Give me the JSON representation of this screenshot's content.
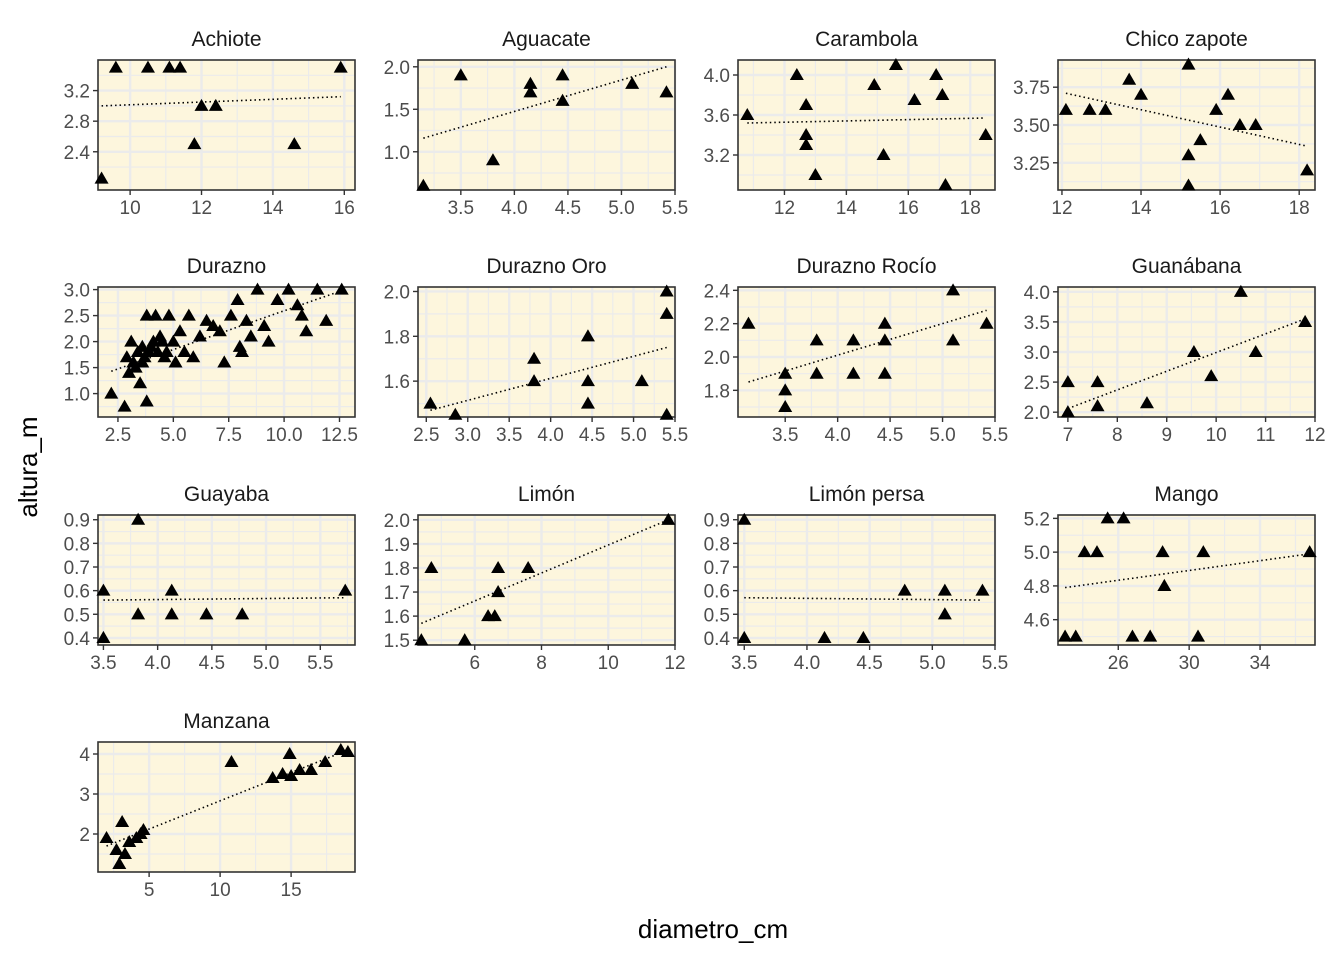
{
  "figure": {
    "xlabel": "diametro_cm",
    "ylabel": "altura_m",
    "panel_fill": "#fdf6dd",
    "grid_color": "#ebebeb",
    "point_color": "#000000",
    "point_shape": "filled-triangle",
    "trend_line": "dotted linear fit",
    "layout": "facet grid 4 columns"
  },
  "chart_data": [
    {
      "type": "scatter",
      "title": "Achiote",
      "xlim": [
        9.1,
        16.3
      ],
      "ylim": [
        1.9,
        3.6
      ],
      "xticks": [
        10,
        12,
        14,
        16
      ],
      "xtick_labels": [
        "10",
        "12",
        "14",
        "16"
      ],
      "yticks": [
        2.4,
        2.8,
        3.2
      ],
      "ytick_labels": [
        "2.4",
        "2.8",
        "3.2"
      ],
      "x": [
        9.2,
        9.6,
        10.5,
        11.1,
        11.4,
        12.0,
        12.4,
        11.8,
        14.6,
        15.9
      ],
      "y": [
        2.05,
        3.5,
        3.5,
        3.5,
        3.5,
        3.0,
        3.0,
        2.5,
        2.5,
        3.5
      ],
      "trend": [
        [
          9.2,
          3.0
        ],
        [
          15.9,
          3.12
        ]
      ]
    },
    {
      "type": "scatter",
      "title": "Aguacate",
      "xlim": [
        3.1,
        5.5
      ],
      "ylim": [
        0.55,
        2.08
      ],
      "xticks": [
        3.5,
        4.0,
        4.5,
        5.0,
        5.5
      ],
      "xtick_labels": [
        "3.5",
        "4.0",
        "4.5",
        "5.0",
        "5.5"
      ],
      "yticks": [
        1.0,
        1.5,
        2.0
      ],
      "ytick_labels": [
        "1.0",
        "1.5",
        "2.0"
      ],
      "x": [
        3.15,
        3.5,
        3.8,
        4.15,
        4.15,
        4.45,
        4.45,
        5.1,
        5.42
      ],
      "y": [
        0.6,
        1.9,
        0.9,
        1.7,
        1.8,
        1.9,
        1.6,
        1.8,
        1.7
      ],
      "trend": [
        [
          3.15,
          1.16
        ],
        [
          5.42,
          2.0
        ]
      ]
    },
    {
      "type": "scatter",
      "title": "Carambola",
      "xlim": [
        10.5,
        18.8
      ],
      "ylim": [
        2.85,
        4.15
      ],
      "xticks": [
        12,
        14,
        16,
        18
      ],
      "xtick_labels": [
        "12",
        "14",
        "16",
        "18"
      ],
      "yticks": [
        3.2,
        3.6,
        4.0
      ],
      "ytick_labels": [
        "3.2",
        "3.6",
        "4.0"
      ],
      "x": [
        10.8,
        12.4,
        12.7,
        12.7,
        12.7,
        13.0,
        14.9,
        15.2,
        15.6,
        16.2,
        16.9,
        17.1,
        17.2,
        18.5
      ],
      "y": [
        3.6,
        4.0,
        3.7,
        3.4,
        3.3,
        3.0,
        3.9,
        3.2,
        4.1,
        3.75,
        4.0,
        3.8,
        2.9,
        3.4
      ],
      "trend": [
        [
          10.8,
          3.52
        ],
        [
          18.5,
          3.57
        ]
      ]
    },
    {
      "type": "scatter",
      "title": "Chico zapote",
      "xlim": [
        11.9,
        18.4
      ],
      "ylim": [
        3.07,
        3.93
      ],
      "xticks": [
        12,
        14,
        16,
        18
      ],
      "xtick_labels": [
        "12",
        "14",
        "16",
        "18"
      ],
      "yticks": [
        3.25,
        3.5,
        3.75
      ],
      "ytick_labels": [
        "3.25",
        "3.50",
        "3.75"
      ],
      "x": [
        12.1,
        12.7,
        13.1,
        13.7,
        14.0,
        15.2,
        15.2,
        15.2,
        15.5,
        15.9,
        16.2,
        16.5,
        16.9,
        18.2
      ],
      "y": [
        3.6,
        3.6,
        3.6,
        3.8,
        3.7,
        3.9,
        3.3,
        3.1,
        3.4,
        3.6,
        3.7,
        3.5,
        3.5,
        3.2
      ],
      "trend": [
        [
          12.1,
          3.71
        ],
        [
          18.2,
          3.36
        ]
      ]
    },
    {
      "type": "scatter",
      "title": "Durazno",
      "xlim": [
        1.6,
        13.2
      ],
      "ylim": [
        0.55,
        3.05
      ],
      "xticks": [
        2.5,
        5.0,
        7.5,
        10.0,
        12.5
      ],
      "xtick_labels": [
        "2.5",
        "5.0",
        "7.5",
        "10.0",
        "12.5"
      ],
      "yticks": [
        1.0,
        1.5,
        2.0,
        2.5,
        3.0
      ],
      "ytick_labels": [
        "1.0",
        "1.5",
        "2.0",
        "2.5",
        "3.0"
      ],
      "x": [
        2.2,
        2.8,
        2.9,
        3.0,
        3.1,
        3.2,
        3.3,
        3.4,
        3.5,
        3.6,
        3.6,
        3.7,
        3.8,
        3.8,
        3.9,
        4.0,
        4.1,
        4.2,
        4.3,
        4.4,
        4.5,
        4.6,
        4.7,
        4.8,
        5.0,
        5.1,
        5.3,
        5.5,
        5.7,
        5.9,
        6.2,
        6.5,
        6.8,
        7.1,
        7.3,
        7.6,
        7.9,
        8.0,
        8.1,
        8.3,
        8.5,
        8.8,
        9.1,
        9.3,
        9.7,
        10.2,
        10.6,
        10.8,
        11.0,
        11.5,
        11.9,
        12.6
      ],
      "y": [
        1.0,
        0.75,
        1.7,
        1.4,
        2.0,
        1.6,
        1.5,
        1.8,
        1.2,
        1.9,
        1.6,
        1.7,
        2.5,
        0.85,
        1.8,
        1.9,
        2.0,
        2.5,
        1.8,
        2.1,
        2.0,
        1.7,
        1.8,
        2.5,
        2.0,
        1.6,
        2.2,
        1.8,
        2.5,
        1.7,
        2.1,
        2.4,
        2.3,
        2.2,
        1.6,
        2.5,
        2.8,
        1.9,
        1.8,
        2.4,
        2.1,
        3.0,
        2.3,
        2.0,
        2.8,
        3.0,
        2.7,
        2.5,
        2.2,
        3.0,
        2.4,
        3.0
      ],
      "trend": [
        [
          2.2,
          1.43
        ],
        [
          12.6,
          2.98
        ]
      ]
    },
    {
      "type": "scatter",
      "title": "Durazno Oro",
      "xlim": [
        2.4,
        5.5
      ],
      "ylim": [
        1.44,
        2.02
      ],
      "xticks": [
        2.5,
        3.0,
        3.5,
        4.0,
        4.5,
        5.0,
        5.5
      ],
      "xtick_labels": [
        "2.5",
        "3.0",
        "3.5",
        "4.0",
        "4.5",
        "5.0",
        "5.5"
      ],
      "yticks": [
        1.6,
        1.8,
        2.0
      ],
      "ytick_labels": [
        "1.6",
        "1.8",
        "2.0"
      ],
      "x": [
        2.55,
        2.85,
        3.8,
        3.8,
        4.45,
        4.45,
        4.45,
        5.1,
        5.4,
        5.4,
        5.4
      ],
      "y": [
        1.5,
        1.45,
        1.7,
        1.6,
        1.8,
        1.6,
        1.5,
        1.6,
        2.0,
        1.9,
        1.45
      ],
      "trend": [
        [
          2.55,
          1.47
        ],
        [
          5.4,
          1.75
        ]
      ]
    },
    {
      "type": "scatter",
      "title": "Durazno Rocío",
      "xlim": [
        3.05,
        5.5
      ],
      "ylim": [
        1.64,
        2.42
      ],
      "xticks": [
        3.5,
        4.0,
        4.5,
        5.0,
        5.5
      ],
      "xtick_labels": [
        "3.5",
        "4.0",
        "4.5",
        "5.0",
        "5.5"
      ],
      "yticks": [
        1.8,
        2.0,
        2.2,
        2.4
      ],
      "ytick_labels": [
        "1.8",
        "2.0",
        "2.2",
        "2.4"
      ],
      "x": [
        3.15,
        3.5,
        3.5,
        3.5,
        3.8,
        3.8,
        4.15,
        4.15,
        4.45,
        4.45,
        4.45,
        5.1,
        5.1,
        5.42
      ],
      "y": [
        2.2,
        1.9,
        1.8,
        1.7,
        2.1,
        1.9,
        2.1,
        1.9,
        2.2,
        2.1,
        1.9,
        2.4,
        2.1,
        2.2
      ],
      "trend": [
        [
          3.15,
          1.85
        ],
        [
          5.42,
          2.28
        ]
      ]
    },
    {
      "type": "scatter",
      "title": "Guanábana",
      "xlim": [
        6.8,
        12.0
      ],
      "ylim": [
        1.92,
        4.08
      ],
      "xticks": [
        7,
        8,
        9,
        10,
        11,
        12
      ],
      "xtick_labels": [
        "7",
        "8",
        "9",
        "10",
        "11",
        "12"
      ],
      "yticks": [
        2.0,
        2.5,
        3.0,
        3.5,
        4.0
      ],
      "ytick_labels": [
        "2.0",
        "2.5",
        "3.0",
        "3.5",
        "4.0"
      ],
      "x": [
        7.0,
        7.0,
        7.6,
        7.6,
        8.6,
        9.55,
        9.9,
        10.5,
        10.8,
        11.8
      ],
      "y": [
        2.5,
        2.0,
        2.5,
        2.1,
        2.15,
        3.0,
        2.6,
        4.0,
        3.0,
        3.5
      ],
      "trend": [
        [
          7.0,
          2.06
        ],
        [
          11.8,
          3.55
        ]
      ]
    },
    {
      "type": "scatter",
      "title": "Guayaba",
      "xlim": [
        3.45,
        5.82
      ],
      "ylim": [
        0.37,
        0.92
      ],
      "xticks": [
        3.5,
        4.0,
        4.5,
        5.0,
        5.5
      ],
      "xtick_labels": [
        "3.5",
        "4.0",
        "4.5",
        "5.0",
        "5.5"
      ],
      "yticks": [
        0.4,
        0.5,
        0.6,
        0.7,
        0.8,
        0.9
      ],
      "ytick_labels": [
        "0.4",
        "0.5",
        "0.6",
        "0.7",
        "0.8",
        "0.9"
      ],
      "x": [
        3.5,
        3.5,
        3.82,
        3.82,
        4.13,
        4.13,
        4.45,
        4.78,
        5.73
      ],
      "y": [
        0.6,
        0.4,
        0.9,
        0.5,
        0.6,
        0.5,
        0.5,
        0.5,
        0.6
      ],
      "trend": [
        [
          3.5,
          0.56
        ],
        [
          5.73,
          0.57
        ]
      ]
    },
    {
      "type": "scatter",
      "title": "Limón",
      "xlim": [
        4.3,
        12.0
      ],
      "ylim": [
        1.48,
        2.02
      ],
      "xticks": [
        6,
        8,
        10,
        12
      ],
      "xtick_labels": [
        "6",
        "8",
        "10",
        "12"
      ],
      "yticks": [
        1.5,
        1.6,
        1.7,
        1.8,
        1.9,
        2.0
      ],
      "ytick_labels": [
        "1.5",
        "1.6",
        "1.7",
        "1.8",
        "1.9",
        "2.0"
      ],
      "x": [
        4.4,
        4.7,
        5.7,
        6.4,
        6.6,
        6.7,
        6.7,
        7.6,
        11.8
      ],
      "y": [
        1.5,
        1.8,
        1.5,
        1.6,
        1.6,
        1.8,
        1.7,
        1.8,
        2.0
      ],
      "trend": [
        [
          4.4,
          1.57
        ],
        [
          11.8,
          2.0
        ]
      ]
    },
    {
      "type": "scatter",
      "title": "Limón persa",
      "xlim": [
        3.45,
        5.5
      ],
      "ylim": [
        0.37,
        0.92
      ],
      "xticks": [
        3.5,
        4.0,
        4.5,
        5.0,
        5.5
      ],
      "xtick_labels": [
        "3.5",
        "4.0",
        "4.5",
        "5.0",
        "5.5"
      ],
      "yticks": [
        0.4,
        0.5,
        0.6,
        0.7,
        0.8,
        0.9
      ],
      "ytick_labels": [
        "0.4",
        "0.5",
        "0.6",
        "0.7",
        "0.8",
        "0.9"
      ],
      "x": [
        3.5,
        3.5,
        4.14,
        4.45,
        4.78,
        5.1,
        5.1,
        5.4
      ],
      "y": [
        0.9,
        0.4,
        0.4,
        0.4,
        0.6,
        0.6,
        0.5,
        0.6
      ],
      "trend": [
        [
          3.5,
          0.57
        ],
        [
          5.4,
          0.56
        ]
      ]
    },
    {
      "type": "scatter",
      "title": "Mango",
      "xlim": [
        22.6,
        37.1
      ],
      "ylim": [
        4.45,
        5.22
      ],
      "xticks": [
        26,
        30,
        34
      ],
      "xtick_labels": [
        "26",
        "30",
        "34"
      ],
      "yticks": [
        4.6,
        4.8,
        5.0,
        5.2
      ],
      "ytick_labels": [
        "4.6",
        "4.8",
        "5.0",
        "5.2"
      ],
      "x": [
        23.0,
        23.6,
        24.1,
        24.8,
        25.4,
        26.3,
        26.8,
        27.8,
        28.5,
        28.6,
        30.5,
        30.8,
        36.8
      ],
      "y": [
        4.5,
        4.5,
        5.0,
        5.0,
        5.2,
        5.2,
        4.5,
        4.5,
        5.0,
        4.8,
        4.5,
        5.0,
        5.0
      ],
      "trend": [
        [
          23.0,
          4.79
        ],
        [
          36.8,
          4.99
        ]
      ]
    },
    {
      "type": "scatter",
      "title": "Manzana",
      "xlim": [
        1.4,
        19.5
      ],
      "ylim": [
        1.05,
        4.3
      ],
      "xticks": [
        5,
        10,
        15
      ],
      "xtick_labels": [
        "5",
        "10",
        "15"
      ],
      "yticks": [
        2,
        3,
        4
      ],
      "ytick_labels": [
        "2",
        "3",
        "4"
      ],
      "x": [
        2.0,
        2.7,
        2.9,
        3.1,
        3.3,
        3.6,
        4.1,
        4.4,
        4.6,
        10.8,
        13.7,
        14.4,
        14.9,
        15.0,
        15.6,
        16.4,
        17.4,
        18.5,
        19.0
      ],
      "y": [
        1.9,
        1.6,
        1.25,
        2.3,
        1.5,
        1.8,
        1.9,
        2.0,
        2.1,
        3.8,
        3.4,
        3.5,
        4.0,
        3.45,
        3.6,
        3.6,
        3.8,
        4.1,
        4.05
      ],
      "trend": [
        [
          2.0,
          1.7
        ],
        [
          19.0,
          4.1
        ]
      ]
    }
  ]
}
